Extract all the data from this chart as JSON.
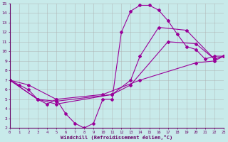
{
  "xlabel": "Windchill (Refroidissement éolien,°C)",
  "xlim": [
    0,
    23
  ],
  "ylim": [
    2,
    15
  ],
  "xticks": [
    0,
    1,
    2,
    3,
    4,
    5,
    6,
    7,
    8,
    9,
    10,
    11,
    12,
    13,
    14,
    15,
    16,
    17,
    18,
    19,
    20,
    21,
    22,
    23
  ],
  "yticks": [
    2,
    3,
    4,
    5,
    6,
    7,
    8,
    9,
    10,
    11,
    12,
    13,
    14,
    15
  ],
  "bg_color": "#c8eaea",
  "line_color": "#990099",
  "grid_color": "#aaaaaa",
  "lines": [
    {
      "x": [
        0,
        1,
        2,
        3,
        4,
        5,
        6,
        7,
        8,
        9,
        10,
        11,
        12,
        13,
        14,
        15,
        16,
        17,
        18,
        19,
        20,
        21,
        22,
        23
      ],
      "y": [
        7,
        6.5,
        6,
        5,
        4.5,
        5,
        3.5,
        2.5,
        2,
        2.5,
        5,
        5,
        12,
        14.2,
        14.8,
        14.8,
        14.3,
        13.2,
        11.8,
        10.5,
        10.2,
        9.2,
        9.5,
        9.5
      ]
    },
    {
      "x": [
        0,
        2,
        5,
        10,
        14,
        20,
        22,
        23
      ],
      "y": [
        7,
        6.5,
        5,
        5.5,
        7,
        8.8,
        9,
        9.5
      ]
    },
    {
      "x": [
        0,
        3,
        5,
        11,
        13,
        17,
        20,
        22,
        23
      ],
      "y": [
        7,
        5,
        4.8,
        5.5,
        6.5,
        11,
        10.8,
        9.2,
        9.5
      ]
    },
    {
      "x": [
        0,
        3,
        5,
        11,
        13,
        14,
        16,
        19,
        22,
        23
      ],
      "y": [
        7,
        5,
        4.5,
        5.5,
        7,
        9.5,
        12.5,
        12.2,
        9.2,
        9.5
      ]
    }
  ]
}
